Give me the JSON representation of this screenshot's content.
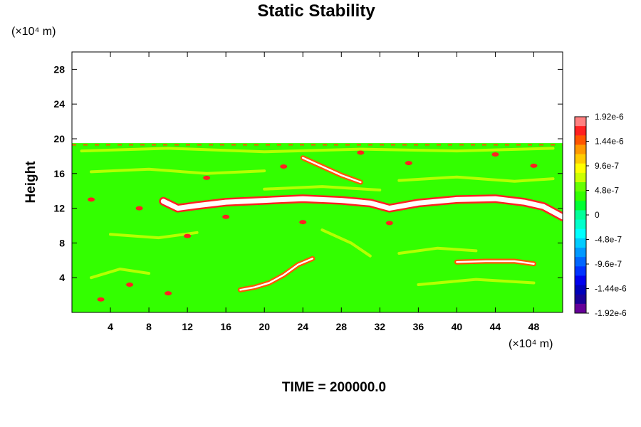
{
  "chart_data": {
    "type": "heatmap",
    "title": "Static Stability",
    "ylabel": "Height",
    "xlabel": "",
    "x_unit_label": "(×10⁴ m)",
    "y_unit_label": "(×10⁴ m)",
    "xlim": [
      0,
      51
    ],
    "ylim": [
      0,
      30
    ],
    "x_ticks": [
      4,
      8,
      12,
      16,
      20,
      24,
      28,
      32,
      36,
      40,
      44,
      48
    ],
    "y_ticks": [
      4,
      8,
      12,
      16,
      20,
      24,
      28
    ],
    "x_tick_labels": [
      "4",
      "8",
      "12",
      "16",
      "20",
      "24",
      "28",
      "32",
      "36",
      "40",
      "44",
      "48"
    ],
    "y_tick_labels": [
      "4",
      "8",
      "12",
      "16",
      "20",
      "24",
      "28"
    ],
    "data_top": 19.5,
    "background_value": 0,
    "colorbar": {
      "min": -1.92e-06,
      "max": 1.92e-06,
      "tick_values": [
        1.92e-06,
        1.44e-06,
        9.6e-07,
        4.8e-07,
        0,
        -4.8e-07,
        -9.6e-07,
        -1.44e-06,
        -1.92e-06
      ],
      "tick_labels": [
        "1.92e-6",
        "1.44e-6",
        "9.6e-7",
        "4.8e-7",
        "0",
        "-4.8e-7",
        "-9.6e-7",
        "-1.44e-6",
        "-1.92e-6"
      ],
      "colors": [
        "#ff8080",
        "#ff2020",
        "#ff5500",
        "#ff9900",
        "#ffcc00",
        "#ffff00",
        "#ccff00",
        "#66ff00",
        "#33ff00",
        "#00ff33",
        "#00ff99",
        "#00ffcc",
        "#00ffff",
        "#00ccff",
        "#0099ff",
        "#0066ff",
        "#0033ff",
        "#0000ee",
        "#0000bb",
        "#1a0099",
        "#660099"
      ]
    },
    "features": {
      "saturated_band": [
        [
          9.5,
          12.8
        ],
        [
          11,
          12.0
        ],
        [
          13,
          12.3
        ],
        [
          16,
          12.7
        ],
        [
          20,
          12.9
        ],
        [
          24,
          13.1
        ],
        [
          28,
          12.9
        ],
        [
          31,
          12.6
        ],
        [
          33,
          12.0
        ],
        [
          36,
          12.6
        ],
        [
          40,
          13.0
        ],
        [
          44,
          13.1
        ],
        [
          47,
          12.7
        ],
        [
          49,
          12.2
        ],
        [
          51,
          11.0
        ]
      ],
      "lower_curl": [
        [
          17.5,
          2.6
        ],
        [
          19,
          2.9
        ],
        [
          20.5,
          3.4
        ],
        [
          22,
          4.3
        ],
        [
          23.5,
          5.5
        ],
        [
          25,
          6.2
        ]
      ],
      "upper_streak": [
        [
          24,
          17.8
        ],
        [
          26,
          16.8
        ],
        [
          28,
          15.8
        ],
        [
          30,
          15.0
        ]
      ],
      "mid_streak": [
        [
          40,
          5.8
        ],
        [
          43,
          5.9
        ],
        [
          46,
          5.9
        ],
        [
          48,
          5.6
        ]
      ]
    },
    "time_label": "TIME = 200000.0"
  }
}
